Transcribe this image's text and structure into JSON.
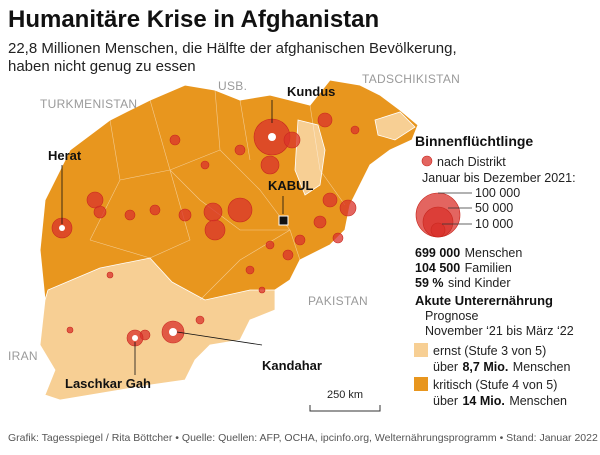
{
  "header": {
    "title": "Humanitäre Krise in Afghanistan",
    "subtitle_lines": [
      "22,8 Millionen Menschen, die Hälfte der afghanischen Bevölkerung,",
      "haben nicht genug zu essen"
    ]
  },
  "map": {
    "countries": [
      "TURKMENISTAN",
      "USB.",
      "TADSCHIKISTAN",
      "PAKISTAN",
      "IRAN"
    ],
    "cities": [
      "Kundus",
      "Herat",
      "KABUL",
      "Kandahar",
      "Laschkar Gah"
    ],
    "scale": "250 km"
  },
  "legend": {
    "title": "Binnenflüchtlinge",
    "dot_label": "nach Distrikt",
    "period": "Januar bis Dezember 2021:",
    "sizes": [
      "100 000",
      "50 000",
      "10 000"
    ],
    "stats": [
      {
        "value": "699 000",
        "label": "Menschen"
      },
      {
        "value": "104 500",
        "label": "Familien"
      },
      {
        "value": "59 %",
        "label": "sind Kinder"
      }
    ],
    "hunger_title": "Akute Unterernährung",
    "hunger_sub": "Prognose",
    "hunger_period": "November ‘21 bis März ‘22",
    "levels": [
      {
        "label": "ernst (Stufe 3 von 5)",
        "pre": "über",
        "amount": "8,7 Mio.",
        "post": "Menschen"
      },
      {
        "label": "kritisch (Stufe 4 von 5)",
        "pre": "über",
        "amount": "14 Mio.",
        "post": "Menschen"
      }
    ]
  },
  "footer": "Grafik: Tagesspiegel / Rita Böttcher • Quelle: Quellen: AFP, OCHA, ipcinfo.org, Welternährungsprogramm • Stand: Januar 2022"
}
